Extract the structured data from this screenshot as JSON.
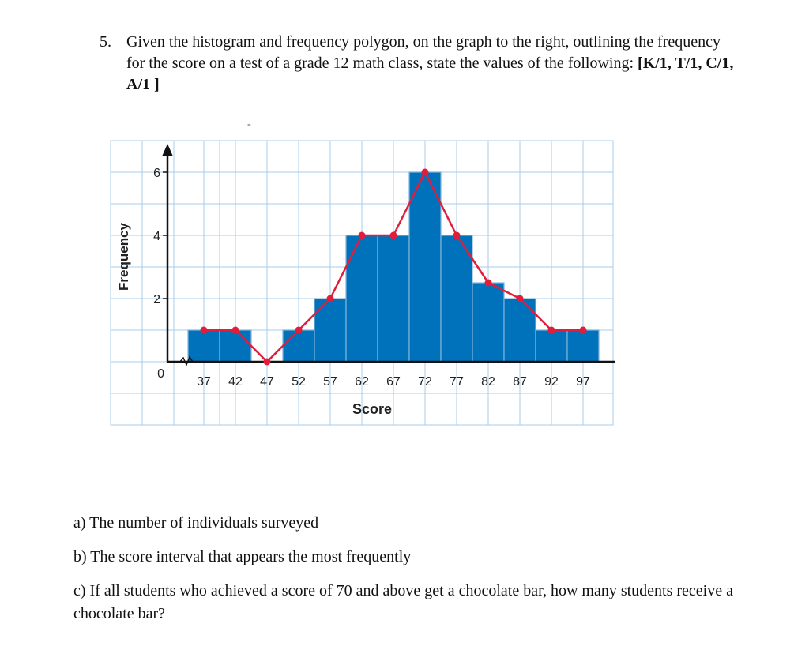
{
  "question": {
    "number": "5.",
    "text": "Given the histogram and frequency polygon, on the graph to the right, outlining the frequency for the score on a test of a grade 12 math class, state the values of the following:",
    "marks": "[K/1, T/1, C/1, A/1 ]",
    "stray_mark": "-"
  },
  "chart_data": {
    "type": "bar",
    "xlabel": "Score",
    "ylabel": "Frequency",
    "origin_label": "0",
    "y_ticks": [
      2,
      4,
      6
    ],
    "x_tick_labels": [
      "37",
      "42",
      "47",
      "52",
      "57",
      "62",
      "67",
      "72",
      "77",
      "82",
      "87",
      "92",
      "97"
    ],
    "ylim": [
      0,
      6
    ],
    "grid": true,
    "bar_midpoints": [
      37,
      42,
      47,
      52,
      57,
      62,
      67,
      72,
      77,
      82,
      87,
      92,
      97
    ],
    "bar_values": [
      1,
      1,
      0,
      1,
      2,
      4,
      4,
      6,
      4,
      2.5,
      2,
      1,
      1
    ],
    "polygon_points": [
      [
        37,
        1
      ],
      [
        42,
        1
      ],
      [
        47,
        0
      ],
      [
        52,
        1
      ],
      [
        57,
        2
      ],
      [
        62,
        4
      ],
      [
        67,
        4
      ],
      [
        72,
        6
      ],
      [
        77,
        4
      ],
      [
        82,
        2.5
      ],
      [
        87,
        2
      ],
      [
        92,
        1
      ],
      [
        97,
        1
      ]
    ],
    "colors": {
      "bar": "#0072bb",
      "polygon": "#e01e3c",
      "grid": "#a8cbe8",
      "axis": "#111111"
    }
  },
  "parts": {
    "a": "a) The number of individuals surveyed",
    "b": "b) The score interval that appears the most frequently",
    "c": "c) If all students who achieved a score of 70 and above get a chocolate bar, how many students receive a chocolate bar?"
  }
}
